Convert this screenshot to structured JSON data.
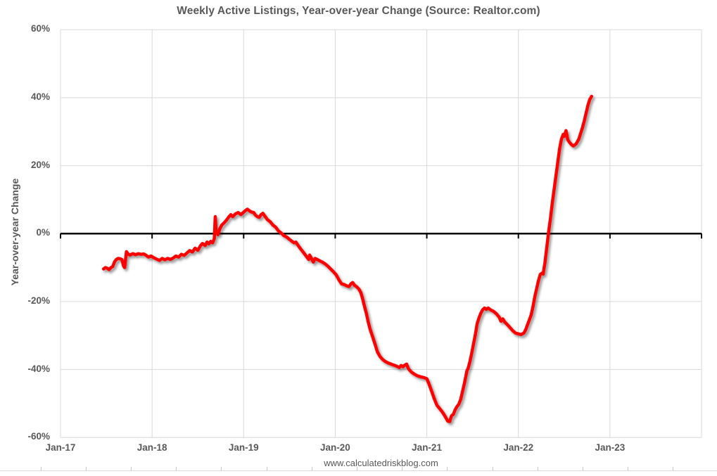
{
  "watermark": "www.calculatedriskblog.com",
  "colors": {
    "line": "#ff0000",
    "grid": "#d9d9d9",
    "zero_axis": "#000000",
    "text": "#595959",
    "worksheet_edge": "#c8c6c6"
  },
  "chart_data": {
    "type": "line",
    "title": "Weekly Active Listings, Year-over-year Change (Source: Realtor.com)",
    "xlabel": "",
    "ylabel": "Year-over-year Change",
    "footer": "www.calculatedriskblog.com",
    "legend_position": "none",
    "grid": true,
    "x_year_start": 2017,
    "x_axis_end": 2024,
    "x_tick_labels": [
      "Jan-17",
      "Jan-18",
      "Jan-19",
      "Jan-20",
      "Jan-21",
      "Jan-22",
      "Jan-23"
    ],
    "ylim": [
      -60,
      60
    ],
    "y_tick_values": [
      60,
      40,
      20,
      0,
      -20,
      -40,
      -60
    ],
    "y_tick_labels": [
      "60%",
      "40%",
      "20%",
      "0%",
      "-20%",
      "-40%",
      "-60%"
    ],
    "series": [
      {
        "name": "Weekly active listings, year-over-year change",
        "color": "#ff0000",
        "points": [
          [
            2017.47,
            -10.4
          ],
          [
            2017.49,
            -10.0
          ],
          [
            2017.51,
            -10.2
          ],
          [
            2017.53,
            -10.6
          ],
          [
            2017.55,
            -10.0
          ],
          [
            2017.57,
            -9.7
          ],
          [
            2017.59,
            -8.3
          ],
          [
            2017.61,
            -7.6
          ],
          [
            2017.63,
            -7.3
          ],
          [
            2017.65,
            -7.4
          ],
          [
            2017.67,
            -7.6
          ],
          [
            2017.69,
            -9.6
          ],
          [
            2017.7,
            -10.0
          ],
          [
            2017.72,
            -5.3
          ],
          [
            2017.74,
            -6.1
          ],
          [
            2017.76,
            -6.3
          ],
          [
            2017.79,
            -5.9
          ],
          [
            2017.82,
            -6.2
          ],
          [
            2017.85,
            -5.9
          ],
          [
            2017.88,
            -6.1
          ],
          [
            2017.91,
            -6.0
          ],
          [
            2017.93,
            -6.3
          ],
          [
            2017.96,
            -6.9
          ],
          [
            2017.99,
            -6.6
          ],
          [
            2018.02,
            -7.1
          ],
          [
            2018.05,
            -7.5
          ],
          [
            2018.08,
            -7.9
          ],
          [
            2018.11,
            -7.3
          ],
          [
            2018.14,
            -7.7
          ],
          [
            2018.17,
            -7.3
          ],
          [
            2018.2,
            -7.6
          ],
          [
            2018.23,
            -7.2
          ],
          [
            2018.26,
            -6.6
          ],
          [
            2018.29,
            -6.9
          ],
          [
            2018.32,
            -6.1
          ],
          [
            2018.35,
            -6.4
          ],
          [
            2018.38,
            -5.7
          ],
          [
            2018.41,
            -5.0
          ],
          [
            2018.44,
            -5.4
          ],
          [
            2018.47,
            -4.3
          ],
          [
            2018.5,
            -4.9
          ],
          [
            2018.53,
            -3.5
          ],
          [
            2018.55,
            -2.9
          ],
          [
            2018.58,
            -3.5
          ],
          [
            2018.6,
            -2.5
          ],
          [
            2018.62,
            -3.0
          ],
          [
            2018.64,
            -2.3
          ],
          [
            2018.66,
            -2.7
          ],
          [
            2018.68,
            -1.5
          ],
          [
            2018.69,
            5.0
          ],
          [
            2018.7,
            0.8
          ],
          [
            2018.72,
            -0.3
          ],
          [
            2018.74,
            1.4
          ],
          [
            2018.76,
            2.5
          ],
          [
            2018.79,
            3.3
          ],
          [
            2018.81,
            3.9
          ],
          [
            2018.84,
            5.0
          ],
          [
            2018.86,
            5.6
          ],
          [
            2018.88,
            5.0
          ],
          [
            2018.91,
            5.8
          ],
          [
            2018.94,
            6.2
          ],
          [
            2018.97,
            5.6
          ],
          [
            2019.0,
            6.3
          ],
          [
            2019.02,
            6.8
          ],
          [
            2019.04,
            7.2
          ],
          [
            2019.06,
            6.8
          ],
          [
            2019.08,
            6.4
          ],
          [
            2019.11,
            6.2
          ],
          [
            2019.13,
            5.4
          ],
          [
            2019.15,
            5.0
          ],
          [
            2019.17,
            4.8
          ],
          [
            2019.19,
            5.6
          ],
          [
            2019.21,
            6.0
          ],
          [
            2019.23,
            5.2
          ],
          [
            2019.26,
            4.1
          ],
          [
            2019.29,
            3.5
          ],
          [
            2019.32,
            2.5
          ],
          [
            2019.35,
            1.9
          ],
          [
            2019.38,
            0.8
          ],
          [
            2019.41,
            0.2
          ],
          [
            2019.44,
            -0.6
          ],
          [
            2019.47,
            -1.0
          ],
          [
            2019.5,
            -1.7
          ],
          [
            2019.53,
            -2.3
          ],
          [
            2019.55,
            -2.7
          ],
          [
            2019.57,
            -2.5
          ],
          [
            2019.6,
            -3.7
          ],
          [
            2019.63,
            -4.8
          ],
          [
            2019.66,
            -5.8
          ],
          [
            2019.69,
            -6.9
          ],
          [
            2019.71,
            -7.6
          ],
          [
            2019.72,
            -6.3
          ],
          [
            2019.74,
            -7.3
          ],
          [
            2019.76,
            -8.4
          ],
          [
            2019.78,
            -7.3
          ],
          [
            2019.81,
            -7.7
          ],
          [
            2019.83,
            -8.0
          ],
          [
            2019.86,
            -8.4
          ],
          [
            2019.89,
            -8.9
          ],
          [
            2019.92,
            -9.6
          ],
          [
            2019.95,
            -10.4
          ],
          [
            2019.98,
            -11.2
          ],
          [
            2020.01,
            -12.1
          ],
          [
            2020.04,
            -13.6
          ],
          [
            2020.07,
            -14.8
          ],
          [
            2020.1,
            -15.0
          ],
          [
            2020.12,
            -15.3
          ],
          [
            2020.15,
            -15.6
          ],
          [
            2020.17,
            -14.8
          ],
          [
            2020.19,
            -14.4
          ],
          [
            2020.21,
            -15.2
          ],
          [
            2020.24,
            -15.8
          ],
          [
            2020.26,
            -16.4
          ],
          [
            2020.28,
            -17.4
          ],
          [
            2020.3,
            -19.3
          ],
          [
            2020.32,
            -21.5
          ],
          [
            2020.34,
            -23.5
          ],
          [
            2020.36,
            -26.0
          ],
          [
            2020.38,
            -28.1
          ],
          [
            2020.41,
            -30.5
          ],
          [
            2020.44,
            -33.0
          ],
          [
            2020.46,
            -34.8
          ],
          [
            2020.49,
            -36.2
          ],
          [
            2020.52,
            -37.1
          ],
          [
            2020.55,
            -37.7
          ],
          [
            2020.58,
            -38.1
          ],
          [
            2020.61,
            -38.4
          ],
          [
            2020.64,
            -38.7
          ],
          [
            2020.67,
            -39.0
          ],
          [
            2020.7,
            -39.4
          ],
          [
            2020.72,
            -38.8
          ],
          [
            2020.74,
            -39.2
          ],
          [
            2020.76,
            -38.7
          ],
          [
            2020.78,
            -38.4
          ],
          [
            2020.8,
            -39.8
          ],
          [
            2020.83,
            -40.7
          ],
          [
            2020.86,
            -41.3
          ],
          [
            2020.9,
            -41.9
          ],
          [
            2020.94,
            -42.2
          ],
          [
            2020.97,
            -42.4
          ],
          [
            2021.0,
            -42.7
          ],
          [
            2021.02,
            -44.0
          ],
          [
            2021.05,
            -46.2
          ],
          [
            2021.08,
            -48.5
          ],
          [
            2021.11,
            -50.5
          ],
          [
            2021.14,
            -51.5
          ],
          [
            2021.17,
            -52.5
          ],
          [
            2021.2,
            -53.8
          ],
          [
            2021.23,
            -55.2
          ],
          [
            2021.25,
            -55.3
          ],
          [
            2021.27,
            -53.6
          ],
          [
            2021.29,
            -53.2
          ],
          [
            2021.31,
            -51.8
          ],
          [
            2021.33,
            -50.9
          ],
          [
            2021.35,
            -50.2
          ],
          [
            2021.37,
            -48.8
          ],
          [
            2021.39,
            -46.5
          ],
          [
            2021.41,
            -44.2
          ],
          [
            2021.43,
            -41.5
          ],
          [
            2021.44,
            -40.2
          ],
          [
            2021.45,
            -39.8
          ],
          [
            2021.47,
            -37.8
          ],
          [
            2021.49,
            -35.3
          ],
          [
            2021.51,
            -32.5
          ],
          [
            2021.53,
            -29.8
          ],
          [
            2021.55,
            -26.5
          ],
          [
            2021.57,
            -24.8
          ],
          [
            2021.59,
            -23.4
          ],
          [
            2021.61,
            -22.4
          ],
          [
            2021.63,
            -21.9
          ],
          [
            2021.65,
            -22.3
          ],
          [
            2021.67,
            -21.9
          ],
          [
            2021.7,
            -22.5
          ],
          [
            2021.73,
            -22.9
          ],
          [
            2021.76,
            -23.6
          ],
          [
            2021.79,
            -24.6
          ],
          [
            2021.81,
            -25.8
          ],
          [
            2021.83,
            -25.1
          ],
          [
            2021.85,
            -26.0
          ],
          [
            2021.88,
            -26.8
          ],
          [
            2021.91,
            -27.7
          ],
          [
            2021.94,
            -28.6
          ],
          [
            2021.97,
            -29.3
          ],
          [
            2022.0,
            -29.5
          ],
          [
            2022.03,
            -29.7
          ],
          [
            2022.06,
            -29.3
          ],
          [
            2022.08,
            -28.3
          ],
          [
            2022.1,
            -26.8
          ],
          [
            2022.12,
            -25.4
          ],
          [
            2022.14,
            -23.9
          ],
          [
            2022.16,
            -21.5
          ],
          [
            2022.18,
            -18.5
          ],
          [
            2022.2,
            -16.2
          ],
          [
            2022.22,
            -13.8
          ],
          [
            2022.24,
            -12.0
          ],
          [
            2022.26,
            -11.6
          ],
          [
            2022.27,
            -11.9
          ],
          [
            2022.29,
            -8.5
          ],
          [
            2022.31,
            -4.0
          ],
          [
            2022.33,
            0.5
          ],
          [
            2022.35,
            4.5
          ],
          [
            2022.37,
            9.0
          ],
          [
            2022.39,
            13.0
          ],
          [
            2022.41,
            17.0
          ],
          [
            2022.43,
            21.0
          ],
          [
            2022.45,
            25.0
          ],
          [
            2022.47,
            27.8
          ],
          [
            2022.49,
            29.2
          ],
          [
            2022.5,
            28.6
          ],
          [
            2022.52,
            30.3
          ],
          [
            2022.54,
            27.6
          ],
          [
            2022.56,
            26.8
          ],
          [
            2022.58,
            26.2
          ],
          [
            2022.6,
            25.8
          ],
          [
            2022.63,
            26.4
          ],
          [
            2022.66,
            27.8
          ],
          [
            2022.68,
            29.5
          ],
          [
            2022.7,
            31.2
          ],
          [
            2022.72,
            33.2
          ],
          [
            2022.74,
            35.5
          ],
          [
            2022.76,
            37.8
          ],
          [
            2022.78,
            39.5
          ],
          [
            2022.8,
            40.4
          ]
        ]
      }
    ]
  }
}
